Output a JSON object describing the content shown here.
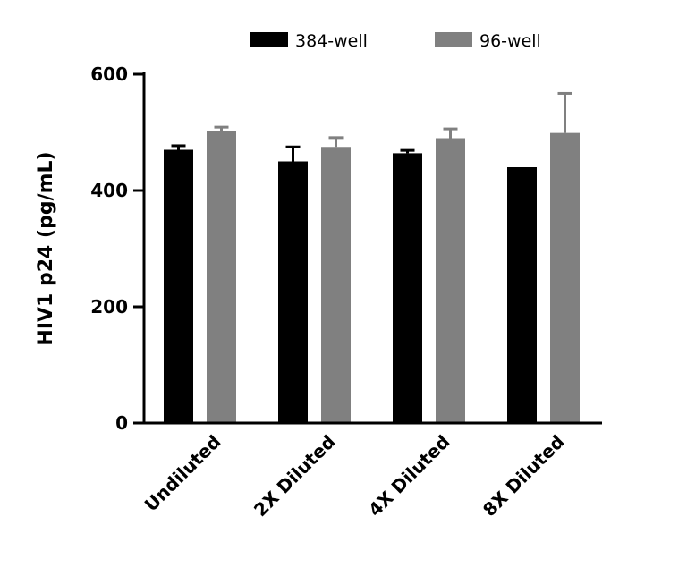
{
  "chart_data": {
    "type": "bar",
    "title": "",
    "xlabel": "",
    "ylabel": "HIV1 p24 (pg/mL)",
    "ylim": [
      0,
      600
    ],
    "yticks": [
      0,
      200,
      400,
      600
    ],
    "grid": false,
    "legend_placement": "top",
    "categories": [
      "Undiluted",
      "2X Diluted",
      "4X Diluted",
      "8X Diluted"
    ],
    "series": [
      {
        "name": "384-well",
        "color": "#000000",
        "values": [
          470,
          450,
          464,
          440
        ],
        "error": [
          7,
          25,
          5,
          0
        ]
      },
      {
        "name": "96-well",
        "color": "#808080",
        "values": [
          503,
          475,
          490,
          499
        ],
        "error": [
          6,
          16,
          16,
          68
        ]
      }
    ]
  }
}
